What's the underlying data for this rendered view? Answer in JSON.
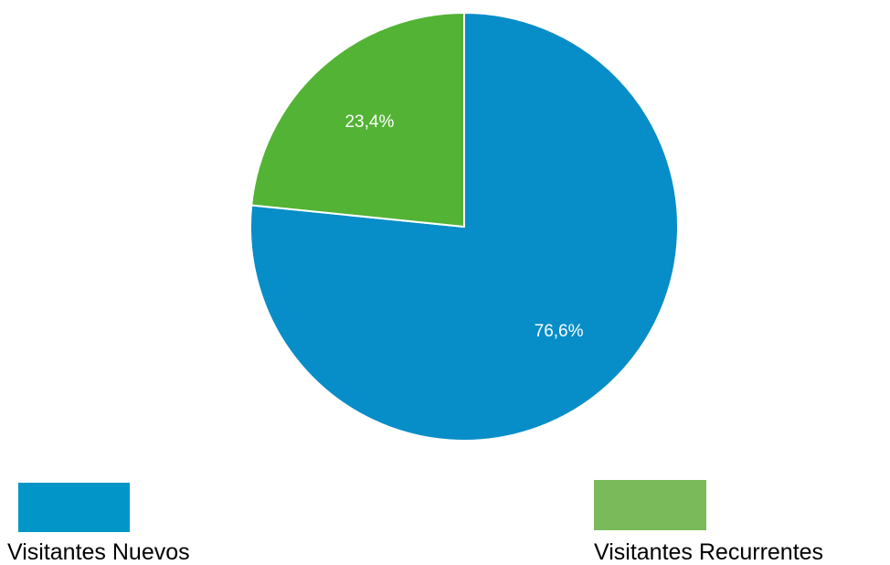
{
  "chart_data": {
    "type": "pie",
    "categories": [
      "Visitantes Nuevos",
      "Visitantes Recurrentes"
    ],
    "values": [
      76.6,
      23.4
    ],
    "labels": [
      "76,6%",
      "23,4%"
    ],
    "colors": [
      "#078dc8",
      "#52b334"
    ],
    "legend_colors": [
      "#0296c8",
      "#7aba5a"
    ],
    "legend_position": "bottom",
    "start_angle": "12 o'clock",
    "direction": "clockwise"
  },
  "legend": {
    "items": [
      {
        "label": "Visitantes Nuevos"
      },
      {
        "label": "Visitantes Recurrentes"
      }
    ]
  }
}
